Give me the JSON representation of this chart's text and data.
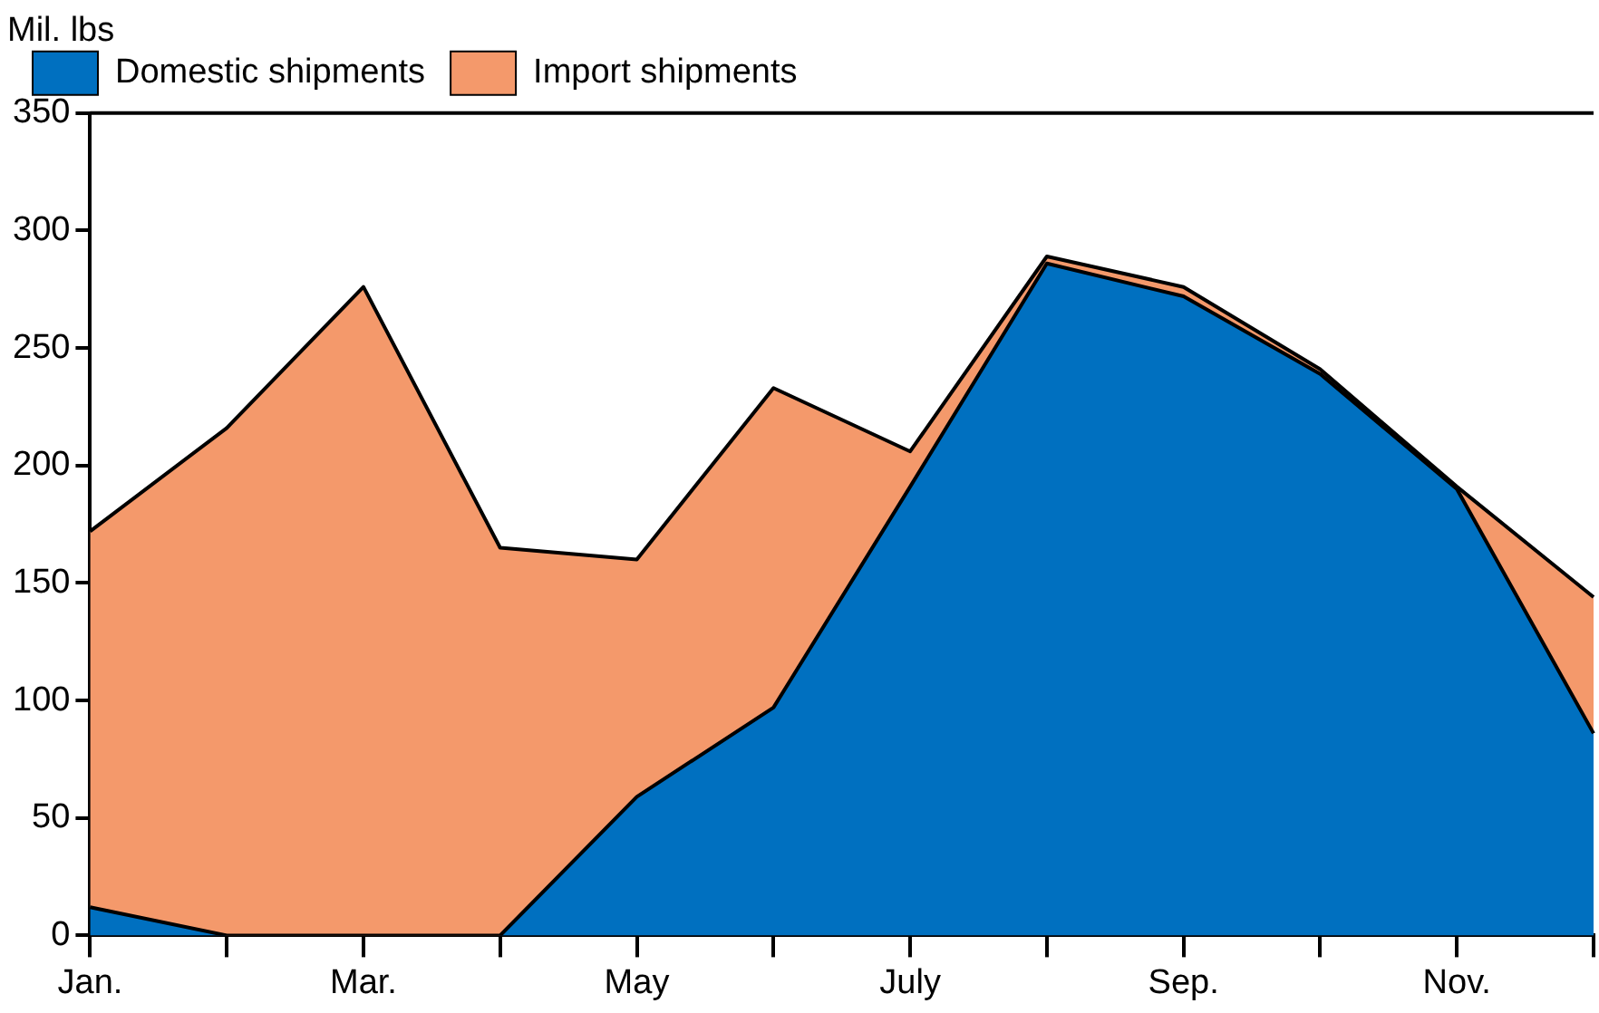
{
  "chart_data": {
    "type": "area",
    "ylabel": "Mil. lbs",
    "categories": [
      "Jan.",
      null,
      "Mar.",
      null,
      "May",
      null,
      "July",
      null,
      "Sep.",
      null,
      "Nov.",
      null
    ],
    "stacked": true,
    "series": [
      {
        "name": "Domestic shipments",
        "color": "#0070c0",
        "values": [
          12,
          0,
          0,
          0,
          59,
          97,
          191,
          286,
          272,
          239,
          190,
          86
        ]
      },
      {
        "name": "Import shipments",
        "color": "#f4996b",
        "values": [
          160,
          216,
          276,
          165,
          101,
          136,
          15,
          3,
          4,
          2,
          1,
          58
        ]
      }
    ],
    "ylim": [
      0,
      350
    ],
    "yticks": [
      0,
      50,
      100,
      150,
      200,
      250,
      300,
      350
    ],
    "grid": false,
    "legend": "top left"
  }
}
